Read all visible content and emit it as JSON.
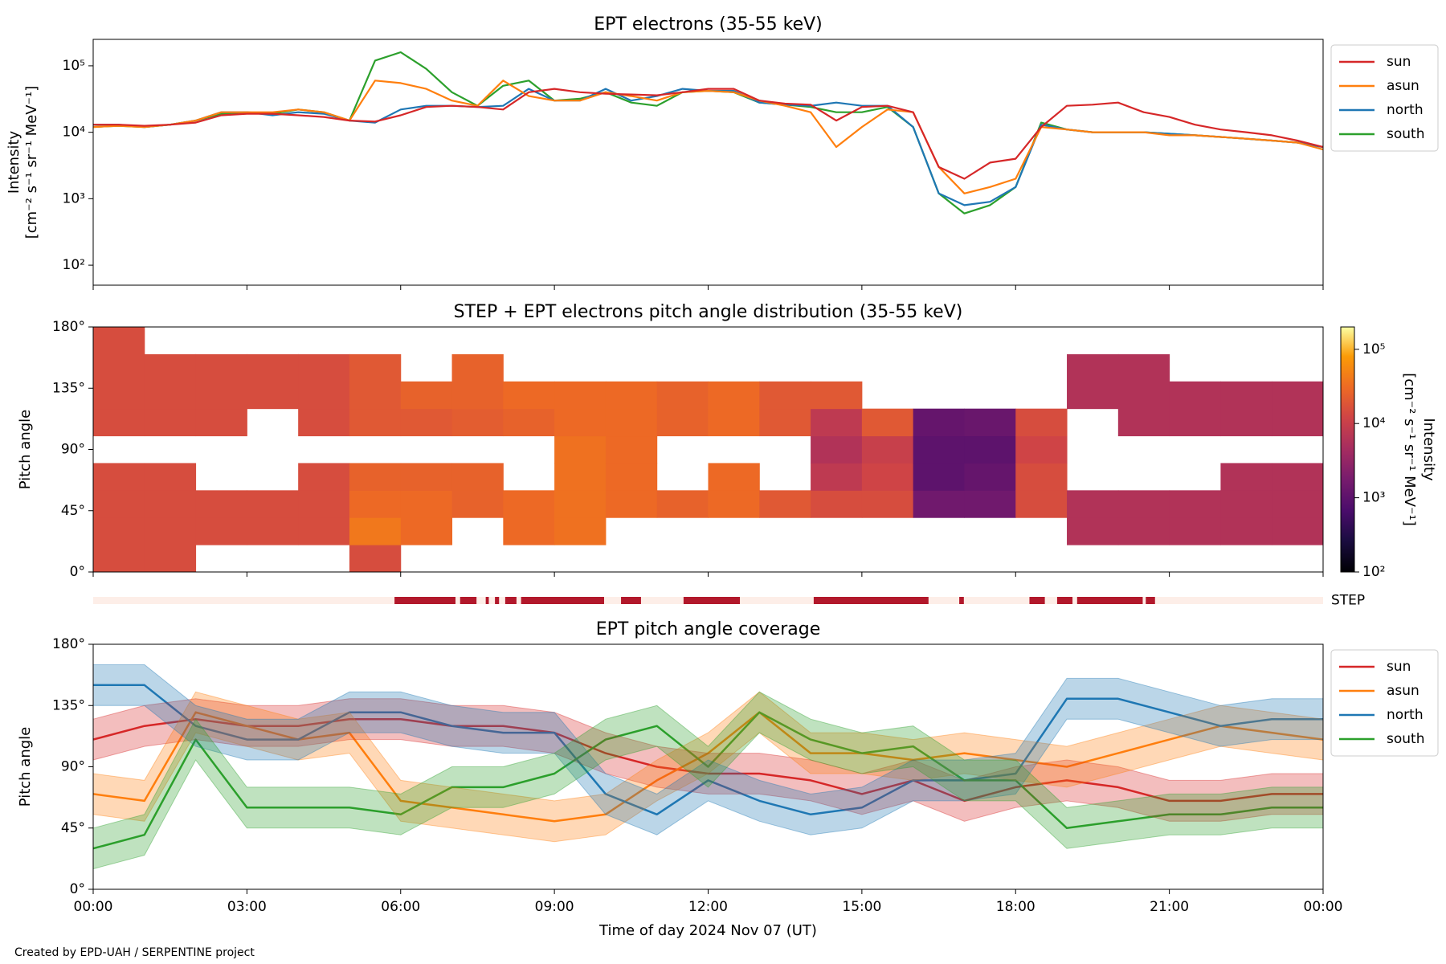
{
  "footer": "Created by EPD-UAH / SERPENTINE project",
  "chart_data": [
    {
      "type": "line",
      "title": "EPT electrons (35-55 keV)",
      "ylabel": "Intensity",
      "yunit": "[cm⁻² s⁻¹ sr⁻¹ MeV⁻¹]",
      "log_y": true,
      "legend": "outside right",
      "ylim": [
        50,
        250000
      ],
      "yticks": [
        {
          "value": 100,
          "label": "10²"
        },
        {
          "value": 1000,
          "label": "10³"
        },
        {
          "value": 10000,
          "label": "10⁴"
        },
        {
          "value": 100000,
          "label": "10⁵"
        }
      ],
      "x": [
        0,
        0.5,
        1,
        1.5,
        2,
        2.5,
        3,
        3.5,
        4,
        4.5,
        5,
        5.5,
        6,
        6.5,
        7,
        7.5,
        8,
        8.5,
        9,
        9.5,
        10,
        10.5,
        11,
        11.5,
        12,
        12.5,
        13,
        13.5,
        14,
        14.5,
        15,
        15.5,
        16,
        16.5,
        17,
        17.5,
        18,
        18.5,
        19,
        19.5,
        20,
        20.5,
        21,
        21.5,
        22,
        22.5,
        23,
        23.5,
        24
      ],
      "series": [
        {
          "name": "sun",
          "color": "#d62728",
          "values": [
            13000,
            13000,
            12500,
            13000,
            14000,
            18000,
            19000,
            19000,
            18000,
            17000,
            15000,
            14500,
            18000,
            24000,
            25000,
            24000,
            22000,
            40000,
            45000,
            40000,
            38000,
            37000,
            36000,
            40000,
            45000,
            45000,
            30000,
            27000,
            26000,
            15000,
            24000,
            25000,
            20000,
            3000,
            2000,
            3500,
            4000,
            12000,
            25000,
            26000,
            28000,
            20000,
            17000,
            13000,
            11000,
            10000,
            9000,
            7500,
            6000
          ]
        },
        {
          "name": "asun",
          "color": "#ff7f0e",
          "values": [
            12000,
            12500,
            12000,
            13000,
            15000,
            20000,
            20000,
            20000,
            22000,
            20000,
            15000,
            60000,
            55000,
            45000,
            30000,
            25000,
            60000,
            35000,
            30000,
            30000,
            40000,
            35000,
            30000,
            40000,
            42000,
            40000,
            30000,
            25000,
            20000,
            6000,
            12000,
            22000,
            20000,
            3000,
            1200,
            1500,
            2000,
            12000,
            11000,
            10000,
            10000,
            10000,
            9000,
            9000,
            8500,
            8000,
            7500,
            7000,
            5500
          ]
        },
        {
          "name": "north",
          "color": "#1f77b4",
          "values": [
            13000,
            13000,
            12000,
            13000,
            15000,
            20000,
            20000,
            18000,
            20000,
            19000,
            15000,
            14000,
            22000,
            25000,
            25000,
            24000,
            25000,
            45000,
            30000,
            30000,
            45000,
            30000,
            35000,
            45000,
            42000,
            42000,
            28000,
            26000,
            25000,
            28000,
            25000,
            25000,
            12000,
            1200,
            800,
            900,
            1500,
            13000,
            11000,
            10000,
            10000,
            10000,
            9500,
            9000,
            8500,
            8000,
            7500,
            7000,
            6000
          ]
        },
        {
          "name": "south",
          "color": "#2ca02c",
          "values": [
            12000,
            12500,
            12000,
            13000,
            15000,
            19000,
            20000,
            19000,
            22000,
            20000,
            15000,
            120000,
            160000,
            90000,
            40000,
            25000,
            50000,
            60000,
            30000,
            32000,
            40000,
            28000,
            25000,
            40000,
            42000,
            40000,
            28000,
            26000,
            24000,
            20000,
            20000,
            24000,
            12000,
            1200,
            600,
            800,
            1500,
            14000,
            11000,
            10000,
            10000,
            10000,
            9500,
            9000,
            8500,
            8000,
            7500,
            7000,
            6000
          ]
        }
      ]
    },
    {
      "type": "heatmap",
      "title": "STEP + EPT electrons pitch angle distribution (35-55 keV)",
      "ylabel": "Pitch angle",
      "colormap": "inferno",
      "log_color": true,
      "clabel": "Intensity",
      "cunit": "[cm⁻² s⁻¹ sr⁻¹ MeV⁻¹]",
      "clim": [
        100,
        200000
      ],
      "cticks": [
        {
          "value": 100,
          "label": "10²"
        },
        {
          "value": 1000,
          "label": "10³"
        },
        {
          "value": 10000,
          "label": "10⁴"
        },
        {
          "value": 100000,
          "label": "10⁵"
        }
      ],
      "ylim": [
        0,
        180
      ],
      "yticks": [
        {
          "value": 0,
          "label": "0°"
        },
        {
          "value": 45,
          "label": "45°"
        },
        {
          "value": 90,
          "label": "90°"
        },
        {
          "value": 135,
          "label": "135°"
        },
        {
          "value": 180,
          "label": "180°"
        }
      ],
      "x_edges": [
        0,
        1,
        2,
        3,
        4,
        5,
        6,
        7,
        8,
        9,
        10,
        11,
        12,
        13,
        14,
        15,
        16,
        17,
        18,
        19,
        20,
        21,
        22,
        23,
        24
      ],
      "y_edges": [
        0,
        20,
        40,
        60,
        80,
        100,
        120,
        140,
        160,
        180
      ],
      "z": [
        [
          15000,
          15000,
          15000,
          15000,
          null,
          15000,
          15000,
          15000,
          15000
        ],
        [
          15000,
          15000,
          15000,
          15000,
          null,
          15000,
          15000,
          15000,
          null
        ],
        [
          null,
          15000,
          15000,
          null,
          null,
          15000,
          15000,
          15000,
          null
        ],
        [
          null,
          15000,
          15000,
          null,
          null,
          null,
          15000,
          15000,
          null
        ],
        [
          null,
          15000,
          15000,
          15000,
          null,
          15000,
          15000,
          15000,
          null
        ],
        [
          15000,
          40000,
          30000,
          25000,
          null,
          20000,
          20000,
          20000,
          null
        ],
        [
          null,
          30000,
          30000,
          25000,
          null,
          20000,
          25000,
          null,
          null
        ],
        [
          null,
          null,
          25000,
          25000,
          null,
          22000,
          25000,
          25000,
          null
        ],
        [
          null,
          30000,
          30000,
          null,
          null,
          25000,
          30000,
          null,
          null
        ],
        [
          null,
          35000,
          35000,
          35000,
          35000,
          30000,
          30000,
          null,
          null
        ],
        [
          null,
          null,
          30000,
          30000,
          30000,
          30000,
          30000,
          null,
          null
        ],
        [
          null,
          null,
          25000,
          null,
          null,
          25000,
          25000,
          null,
          null
        ],
        [
          null,
          null,
          30000,
          30000,
          null,
          30000,
          30000,
          null,
          null
        ],
        [
          null,
          null,
          20000,
          null,
          null,
          20000,
          20000,
          null,
          null
        ],
        [
          null,
          null,
          15000,
          8000,
          6000,
          8000,
          20000,
          null,
          null
        ],
        [
          null,
          null,
          15000,
          12000,
          10000,
          20000,
          null,
          null,
          null
        ],
        [
          null,
          null,
          1500,
          1000,
          1000,
          1200,
          null,
          null,
          null
        ],
        [
          null,
          null,
          1500,
          1200,
          1000,
          1300,
          null,
          null,
          null
        ],
        [
          null,
          null,
          15000,
          15000,
          12000,
          15000,
          null,
          null,
          null
        ],
        [
          null,
          6000,
          6000,
          null,
          null,
          null,
          6000,
          6000,
          null
        ],
        [
          null,
          6000,
          6000,
          null,
          null,
          6000,
          6000,
          6000,
          null
        ],
        [
          null,
          6000,
          6000,
          null,
          null,
          6000,
          6000,
          null,
          null
        ],
        [
          null,
          6000,
          6000,
          6000,
          null,
          6000,
          6000,
          null,
          null
        ],
        [
          null,
          6000,
          6000,
          6000,
          null,
          6000,
          6000,
          null,
          null
        ]
      ]
    },
    {
      "type": "coverage",
      "label": "STEP",
      "color": "#b2182b",
      "background": "#fdeee8",
      "intervals": [
        [
          5.88,
          7.07
        ],
        [
          7.16,
          7.48
        ],
        [
          7.66,
          7.72
        ],
        [
          7.84,
          7.92
        ],
        [
          8.04,
          8.26
        ],
        [
          8.35,
          9.97
        ],
        [
          10.3,
          10.69
        ],
        [
          11.52,
          12.62
        ],
        [
          14.06,
          16.3
        ],
        [
          16.9,
          16.99
        ],
        [
          18.27,
          18.57
        ],
        [
          18.81,
          19.11
        ],
        [
          19.2,
          20.48
        ],
        [
          20.54,
          20.72
        ]
      ]
    },
    {
      "type": "band_line",
      "title": "EPT pitch angle coverage",
      "ylabel": "Pitch angle",
      "xlabel": "Time of day 2024 Nov 07 (UT)",
      "legend": "outside right",
      "xlim": [
        0,
        24
      ],
      "xticks": [
        {
          "value": 0,
          "label": "00:00"
        },
        {
          "value": 3,
          "label": "03:00"
        },
        {
          "value": 6,
          "label": "06:00"
        },
        {
          "value": 9,
          "label": "09:00"
        },
        {
          "value": 12,
          "label": "12:00"
        },
        {
          "value": 15,
          "label": "15:00"
        },
        {
          "value": 18,
          "label": "18:00"
        },
        {
          "value": 21,
          "label": "21:00"
        },
        {
          "value": 24,
          "label": "00:00"
        }
      ],
      "ylim": [
        0,
        180
      ],
      "yticks": [
        {
          "value": 0,
          "label": "0°"
        },
        {
          "value": 45,
          "label": "45°"
        },
        {
          "value": 90,
          "label": "90°"
        },
        {
          "value": 135,
          "label": "135°"
        },
        {
          "value": 180,
          "label": "180°"
        }
      ],
      "x": [
        0,
        1,
        2,
        3,
        4,
        5,
        6,
        7,
        8,
        9,
        10,
        11,
        12,
        13,
        14,
        15,
        16,
        17,
        18,
        19,
        20,
        21,
        22,
        23,
        24
      ],
      "series": [
        {
          "name": "sun",
          "color": "#d62728",
          "values": [
            110,
            120,
            125,
            120,
            120,
            125,
            125,
            120,
            120,
            115,
            100,
            90,
            85,
            85,
            80,
            70,
            80,
            65,
            75,
            80,
            75,
            65,
            65,
            70,
            70
          ],
          "lower": [
            95,
            105,
            110,
            105,
            105,
            110,
            110,
            105,
            105,
            100,
            85,
            75,
            70,
            70,
            65,
            55,
            65,
            50,
            60,
            65,
            60,
            50,
            50,
            55,
            55
          ],
          "upper": [
            125,
            135,
            140,
            135,
            135,
            140,
            140,
            135,
            135,
            130,
            115,
            105,
            100,
            100,
            95,
            85,
            95,
            80,
            90,
            95,
            90,
            80,
            80,
            85,
            85
          ]
        },
        {
          "name": "asun",
          "color": "#ff7f0e",
          "values": [
            70,
            65,
            130,
            120,
            110,
            115,
            65,
            60,
            55,
            50,
            55,
            80,
            100,
            130,
            100,
            100,
            95,
            100,
            95,
            90,
            100,
            110,
            120,
            115,
            110
          ],
          "lower": [
            55,
            50,
            115,
            105,
            95,
            100,
            50,
            45,
            40,
            35,
            40,
            65,
            85,
            115,
            85,
            85,
            80,
            85,
            80,
            75,
            85,
            95,
            105,
            100,
            95
          ],
          "upper": [
            85,
            80,
            145,
            135,
            125,
            130,
            80,
            75,
            70,
            65,
            70,
            95,
            115,
            145,
            115,
            115,
            110,
            115,
            110,
            105,
            115,
            125,
            135,
            130,
            125
          ]
        },
        {
          "name": "north",
          "color": "#1f77b4",
          "values": [
            150,
            150,
            120,
            110,
            110,
            130,
            130,
            120,
            115,
            115,
            70,
            55,
            80,
            65,
            55,
            60,
            80,
            80,
            85,
            140,
            140,
            130,
            120,
            125,
            125
          ],
          "lower": [
            135,
            135,
            105,
            95,
            95,
            115,
            115,
            105,
            100,
            100,
            55,
            40,
            65,
            50,
            40,
            45,
            65,
            65,
            70,
            125,
            125,
            115,
            105,
            110,
            110
          ],
          "upper": [
            165,
            165,
            135,
            125,
            125,
            145,
            145,
            135,
            130,
            130,
            85,
            70,
            95,
            80,
            70,
            75,
            95,
            95,
            100,
            155,
            155,
            145,
            135,
            140,
            140
          ]
        },
        {
          "name": "south",
          "color": "#2ca02c",
          "values": [
            30,
            40,
            110,
            60,
            60,
            60,
            55,
            75,
            75,
            85,
            110,
            120,
            90,
            130,
            110,
            100,
            105,
            80,
            80,
            45,
            50,
            55,
            55,
            60,
            60
          ],
          "lower": [
            15,
            25,
            95,
            45,
            45,
            45,
            40,
            60,
            60,
            70,
            95,
            105,
            75,
            115,
            95,
            85,
            90,
            65,
            65,
            30,
            35,
            40,
            40,
            45,
            45
          ],
          "upper": [
            45,
            55,
            125,
            75,
            75,
            75,
            70,
            90,
            90,
            100,
            125,
            135,
            105,
            145,
            125,
            115,
            120,
            95,
            95,
            60,
            65,
            70,
            70,
            75,
            75
          ]
        }
      ]
    }
  ]
}
